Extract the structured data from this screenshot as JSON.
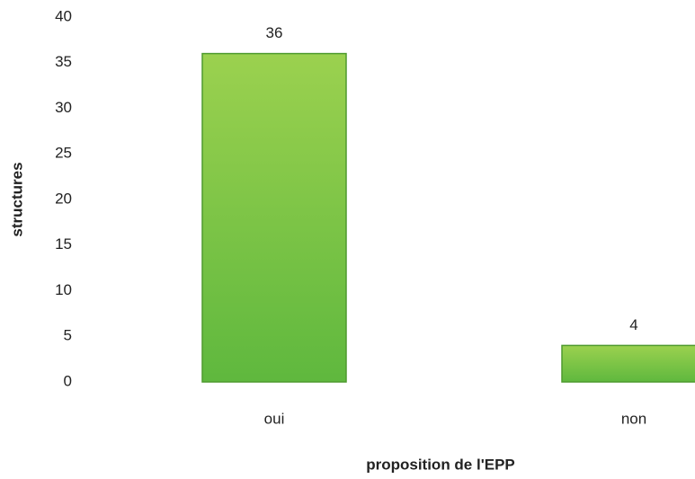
{
  "chart_data": {
    "type": "bar",
    "categories": [
      "oui",
      "non"
    ],
    "values": [
      36,
      4
    ],
    "color": "#7cc242",
    "ylim": [
      0,
      40
    ],
    "yticks": [
      0,
      5,
      10,
      15,
      20,
      25,
      30,
      35,
      40
    ],
    "xlabel": "proposition de l'EPP",
    "ylabel": "structures",
    "grid": false
  }
}
